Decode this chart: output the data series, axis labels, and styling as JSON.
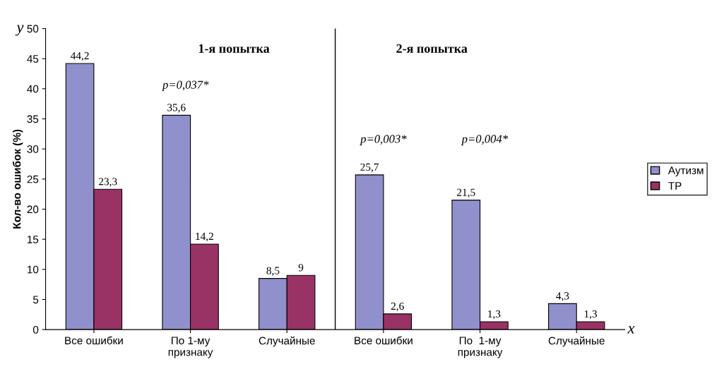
{
  "chart_data": {
    "type": "bar",
    "ylabel": "Кол-во ошибок (%)",
    "categories": [
      "Все ошибки",
      "По 1-му\nпризнаку",
      "Случайные",
      "Все ошибки",
      "По  1-му\nпризнаку",
      "Случайные"
    ],
    "series": [
      {
        "name": "Аутизм",
        "color": "#9090cc",
        "values": [
          44.2,
          35.6,
          8.5,
          25.7,
          21.5,
          4.3
        ],
        "value_labels": [
          "44,2",
          "35,6",
          "8,5",
          "25,7",
          "21,5",
          "4,3"
        ]
      },
      {
        "name": "ТР",
        "color": "#993366",
        "values": [
          23.3,
          14.2,
          9,
          2.6,
          1.3,
          1.3
        ],
        "value_labels": [
          "23,3",
          "14,2",
          "9",
          "2,6",
          "1,3",
          "1,3"
        ]
      }
    ],
    "ylim": [
      0,
      50
    ],
    "yticks": [
      0,
      5,
      10,
      15,
      20,
      25,
      30,
      35,
      40,
      45,
      50
    ],
    "annotations": [
      "y",
      "x",
      "1-я попытка",
      "2-я попытка",
      "p=0,037*",
      "p=0,003*",
      "p=0,004*"
    ],
    "legend": "right",
    "grid": false
  }
}
